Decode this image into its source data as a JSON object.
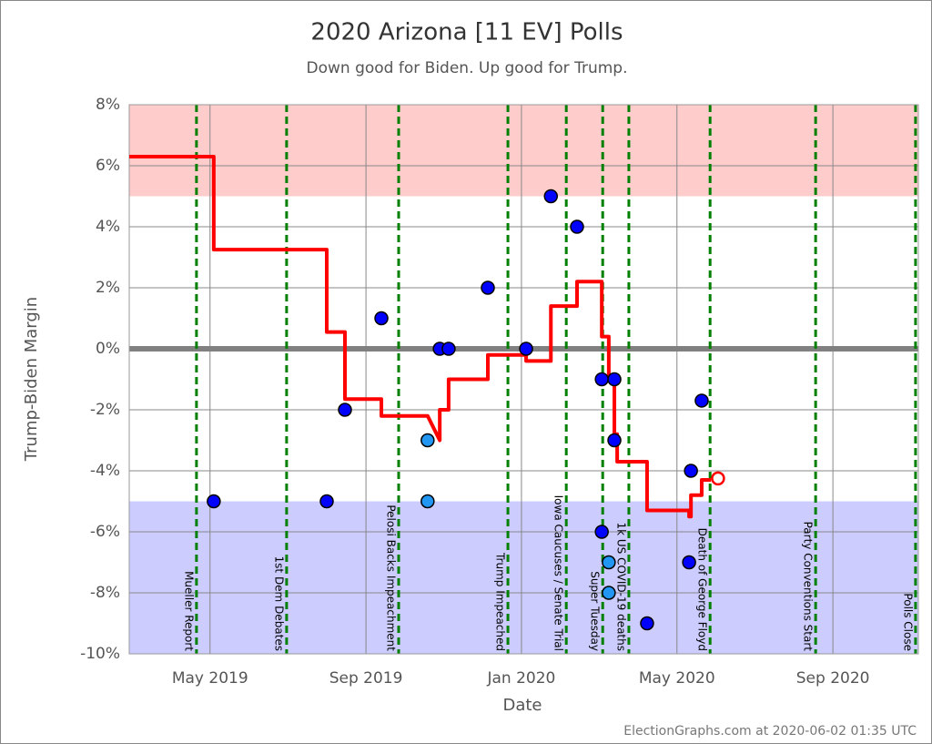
{
  "chart_data": {
    "type": "scatter",
    "title": "2020 Arizona [11 EV] Polls",
    "subtitle": "Down good for Biden. Up good for Trump.",
    "y_label": "Trump-Biden Margin",
    "x_label": "Date",
    "footer": "ElectionGraphs.com at 2020-06-02 01:35 UTC",
    "xlim": [
      2019.16,
      2020.85
    ],
    "ylim": [
      -10,
      8
    ],
    "xticks": [
      {
        "value": 2019.333,
        "label": "May 2019"
      },
      {
        "value": 2019.667,
        "label": "Sep 2019"
      },
      {
        "value": 2020.0,
        "label": "Jan 2020"
      },
      {
        "value": 2020.333,
        "label": "May 2020"
      },
      {
        "value": 2020.667,
        "label": "Sep 2020"
      }
    ],
    "yticks": [
      {
        "value": 8,
        "label": "8%"
      },
      {
        "value": 6,
        "label": "6%"
      },
      {
        "value": 4,
        "label": "4%"
      },
      {
        "value": 2,
        "label": "2%"
      },
      {
        "value": 0,
        "label": "0%"
      },
      {
        "value": -2,
        "label": "-2%"
      },
      {
        "value": -4,
        "label": "-4%"
      },
      {
        "value": -6,
        "label": "-6%"
      },
      {
        "value": -8,
        "label": "-8%"
      },
      {
        "value": -10,
        "label": "-10%"
      }
    ],
    "grid": true,
    "bands": [
      {
        "from": 5,
        "to": 8,
        "color": "#ffcccc"
      },
      {
        "from": -10,
        "to": -5,
        "color": "#ccccff"
      }
    ],
    "zero_line_color": "#808080",
    "events": [
      {
        "x": 2019.304,
        "label": "Mueller Report"
      },
      {
        "x": 2019.497,
        "label": "1st Dem Debates"
      },
      {
        "x": 2019.737,
        "label": "Pelosi Backs Impeachment"
      },
      {
        "x": 2019.971,
        "label": "Trump Impeached"
      },
      {
        "x": 2020.096,
        "label": "Iowa Caucuses / Senate Trial"
      },
      {
        "x": 2020.174,
        "label": "Super Tuesday"
      },
      {
        "x": 2020.23,
        "label": "1k US COVID-19 deaths"
      },
      {
        "x": 2020.404,
        "label": "Death of George Floyd"
      },
      {
        "x": 2020.63,
        "label": "Party Conventions Start"
      },
      {
        "x": 2020.844,
        "label": "Polls Close"
      }
    ],
    "event_color": "#008000",
    "series": [
      {
        "color": "#0000ff",
        "x": [
          2019.341,
          2019.583,
          2019.622,
          2019.7,
          2019.825,
          2019.844,
          2019.928,
          2020.01,
          2020.063,
          2020.119,
          2020.172,
          2020.199,
          2020.199,
          2020.172,
          2020.269,
          2020.359,
          2020.363,
          2020.386
        ],
        "values": [
          -5,
          -5,
          -2,
          1,
          0,
          0,
          2,
          0,
          5,
          4,
          -1,
          -1,
          -3,
          -6,
          -9,
          -7,
          -4,
          -1.7
        ]
      },
      {
        "color": "#2196f3",
        "x": [
          2019.799,
          2019.799,
          2020.187,
          2020.187
        ],
        "values": [
          -3,
          -5,
          -7,
          -8
        ]
      }
    ],
    "average": {
      "color": "#ff0000",
      "x": [
        2019.16,
        2019.341,
        2019.341,
        2019.583,
        2019.583,
        2019.622,
        2019.622,
        2019.7,
        2019.7,
        2019.799,
        2019.825,
        2019.825,
        2019.844,
        2019.844,
        2019.928,
        2019.928,
        2020.01,
        2020.01,
        2020.063,
        2020.063,
        2020.119,
        2020.119,
        2020.172,
        2020.172,
        2020.187,
        2020.187,
        2020.199,
        2020.199,
        2020.205,
        2020.205,
        2020.269,
        2020.269,
        2020.359,
        2020.359,
        2020.363,
        2020.363,
        2020.386,
        2020.386,
        2020.406
      ],
      "values": [
        6.3,
        6.3,
        3.25,
        3.25,
        0.55,
        0.55,
        -1.65,
        -1.65,
        -2.2,
        -2.2,
        -3.0,
        -2.0,
        -2.0,
        -1.0,
        -1.0,
        -0.2,
        -0.2,
        -0.4,
        -0.4,
        1.4,
        1.4,
        2.2,
        2.2,
        0.4,
        0.4,
        -1.0,
        -1.0,
        -2.8,
        -2.8,
        -3.7,
        -3.7,
        -5.3,
        -5.3,
        -5.5,
        -5.5,
        -4.8,
        -4.8,
        -4.3,
        -4.3
      ],
      "current_x": 2020.421,
      "current_value": -4.25
    }
  }
}
